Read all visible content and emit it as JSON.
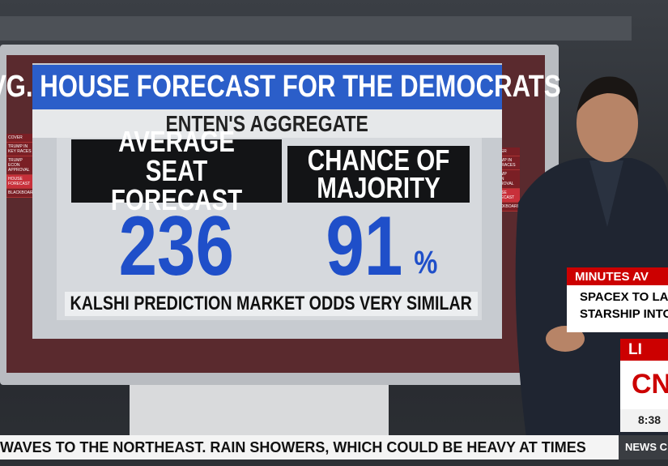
{
  "graphic": {
    "title": "AVG. HOUSE FORECAST FOR THE DEMOCRATS",
    "subtitle": "ENTEN'S AGGREGATE",
    "panels": [
      {
        "header": "AVERAGE SEAT FORECAST",
        "value": 236
      },
      {
        "header": "CHANCE OF MAJORITY",
        "value": 91,
        "unit": "%"
      }
    ],
    "note": "KALSHI PREDICTION MARKET ODDS VERY SIMILAR",
    "menu": [
      "COVER",
      "TRUMP IN KEY RACES",
      "TRUMP ECON APPROVAL",
      "HOUSE FORECAST",
      "BLACKBOARD"
    ]
  },
  "lower_third": {
    "label": "MINUTES AV",
    "lines": [
      "SPACEX TO LA",
      "STARSHIP INTO"
    ]
  },
  "bug": {
    "live": "LI",
    "logo": "CNN",
    "time": "8:38"
  },
  "ticker": {
    "text": "WAVES TO THE NORTHEAST. RAIN SHOWERS, WHICH COULD BE HEAVY AT TIMES",
    "section": "NEWS C"
  }
}
